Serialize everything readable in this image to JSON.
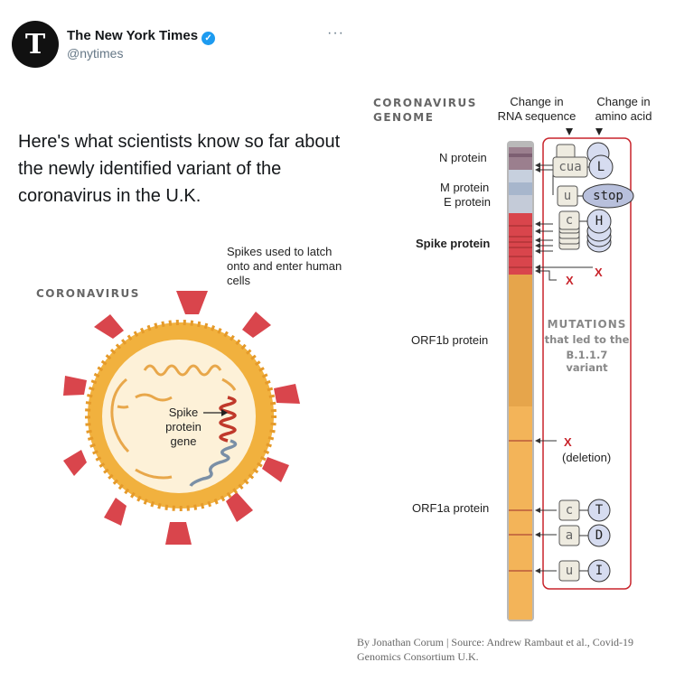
{
  "tweet": {
    "author_name": "The New York Times",
    "handle": "@nytimes",
    "avatar_letter": "T",
    "more_label": "···",
    "text": "Here's what scientists know so far about the newly identified variant of the coronavirus in the U.K."
  },
  "virus": {
    "title": "CORONAVIRUS",
    "spikes_note": "Spikes used to latch onto and enter human cells",
    "gene_label": "Spike protein gene"
  },
  "genome": {
    "title_line1": "CORONAVIRUS",
    "title_line2": "GENOME",
    "col_rna_line1": "Change in",
    "col_rna_line2": "RNA sequence",
    "col_aa_line1": "Change in",
    "col_aa_line2": "amino acid",
    "proteins": {
      "n": "N protein",
      "m": "M protein",
      "e": "E protein",
      "spike": "Spike protein",
      "orf1b": "ORF1b protein",
      "orf1a": "ORF1a protein"
    },
    "mutations_title": "MUTATIONS",
    "mutations_sub1": "that led to the",
    "mutations_sub2": "B.1.1.7 variant",
    "deletion_mark": "X",
    "deletion_label": "(deletion)",
    "rna": {
      "cua": "cua",
      "u1": "u",
      "c1": "c",
      "c2": "c",
      "a1": "a",
      "u2": "u"
    },
    "aa": {
      "l": "L",
      "stop": "stop",
      "h": "H",
      "t": "T",
      "d": "D",
      "i": "I"
    },
    "colors": {
      "spike_red": "#d9454c",
      "orf_orange": "#f3b459",
      "frame_red": "#c8242b",
      "aa_fill": "#d6dcf0"
    }
  },
  "credit": {
    "line1": "By Jonathan Corum | Source: Andrew Rambaut et al., Covid-19",
    "line2": "Genomics Consortium U.K."
  }
}
